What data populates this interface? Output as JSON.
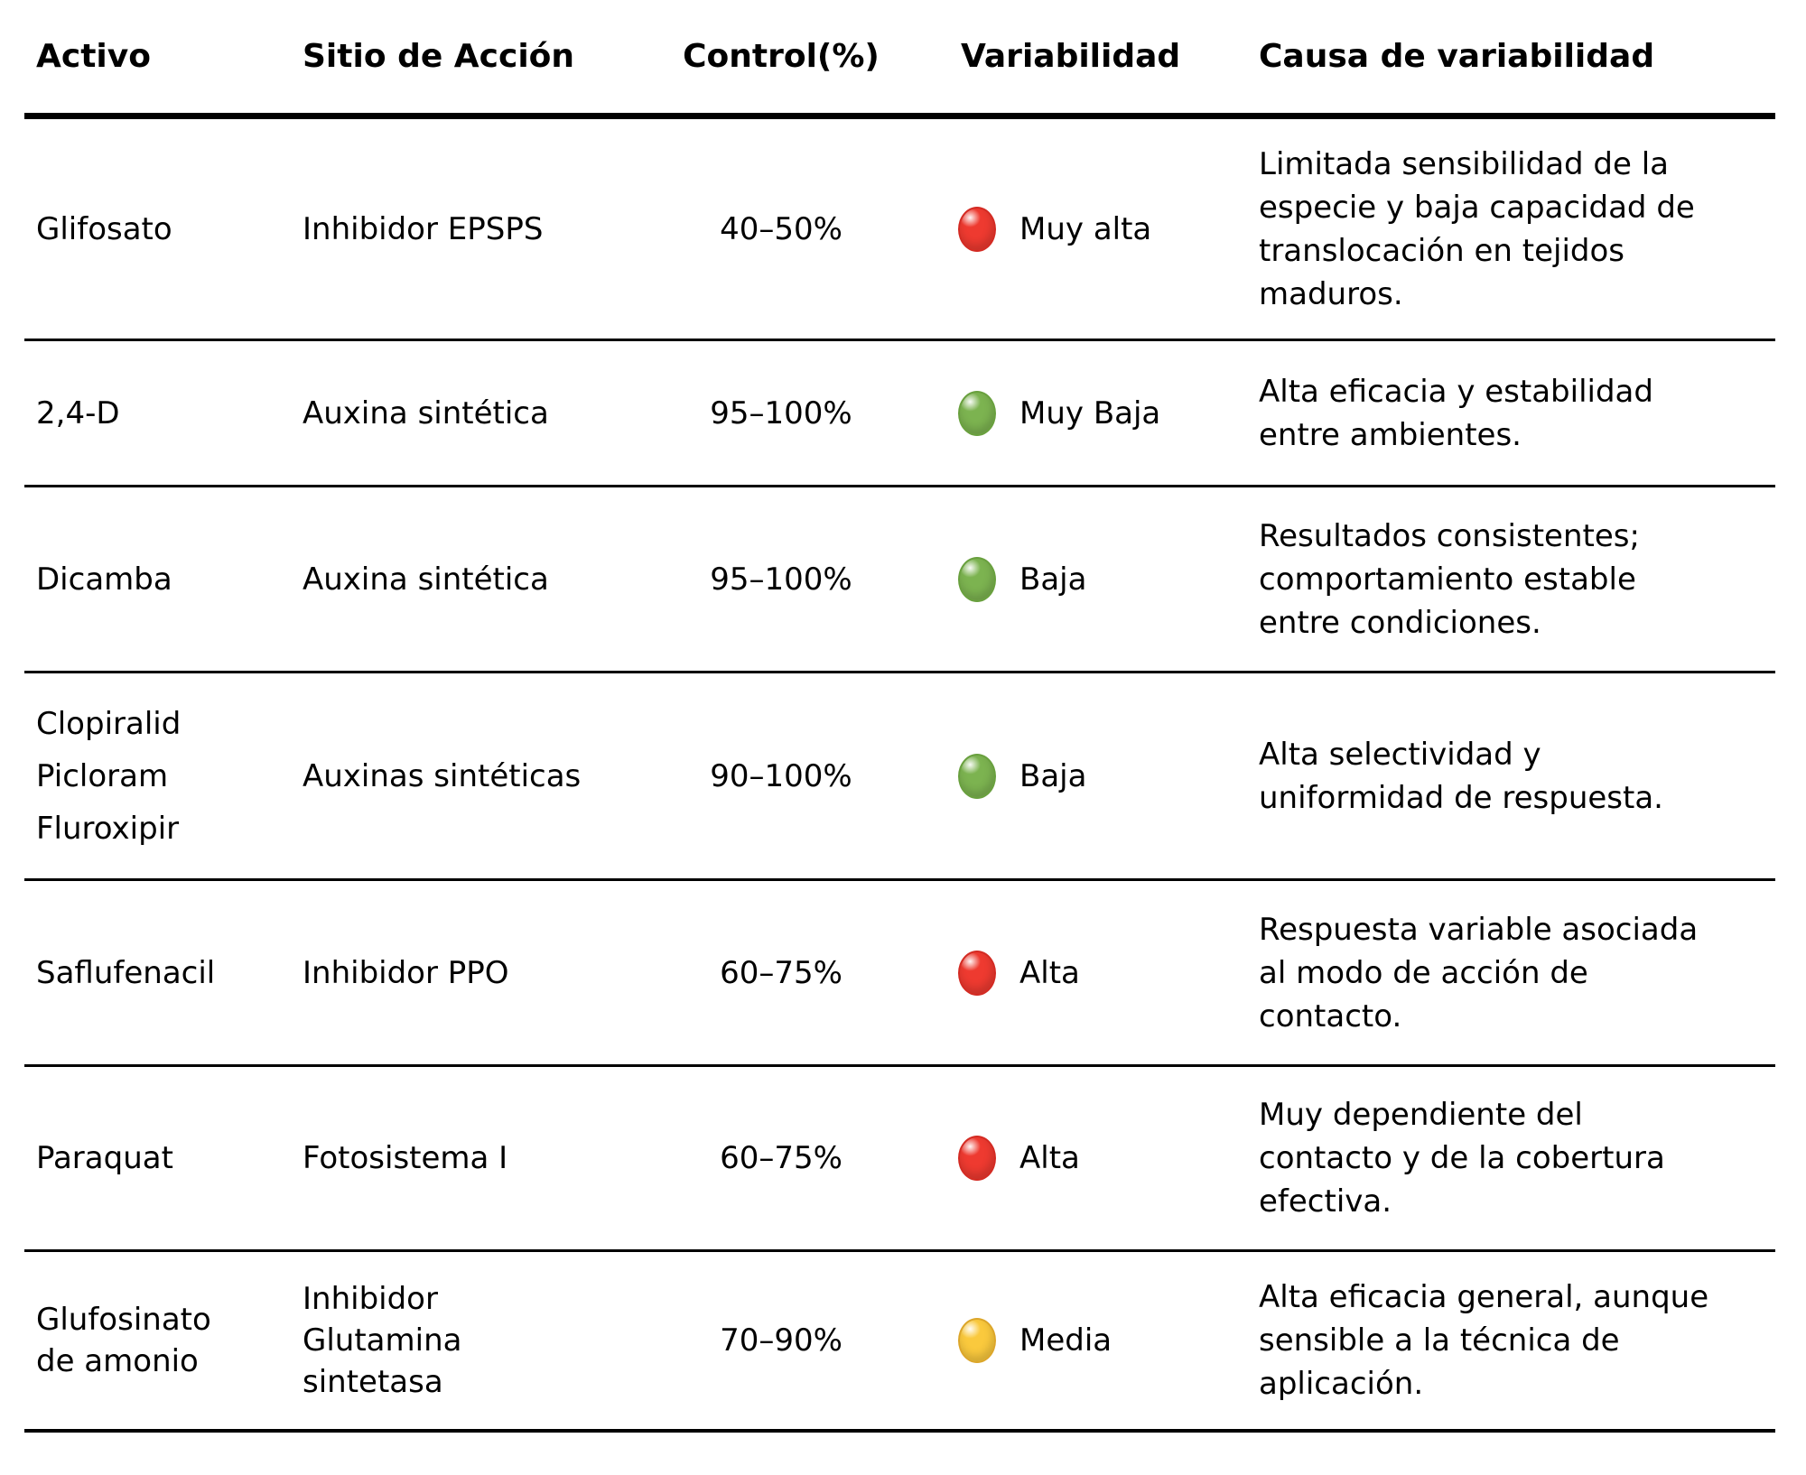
{
  "chart_data": {
    "type": "table",
    "title": "",
    "columns": [
      "Activo",
      "Sitio de Acción",
      "Control(%)",
      "Variabilidad",
      "Causa de variabilidad"
    ],
    "legend_colors": {
      "muy_alta_alta": "#ee3a30",
      "baja_muy_baja": "#7cb350",
      "media": "#fac93d"
    },
    "rows": [
      {
        "activo": "Glifosato",
        "sitio": "Inhibidor EPSPS",
        "control": "40–50%",
        "variabilidad": "Muy alta",
        "dot": {
          "fill": "#ee3a30",
          "edge": "#d32b23",
          "name": "red"
        },
        "causa": "Limitada sensibilidad de la\nespecie y baja capacidad de\ntranslocación en tejidos\nmaduros."
      },
      {
        "activo": "2,4-D",
        "sitio": "Auxina sintética",
        "control": "95–100%",
        "variabilidad": "Muy Baja",
        "dot": {
          "fill": "#7cb350",
          "edge": "#69a03e",
          "name": "green"
        },
        "causa": "Alta eficacia y estabilidad\nentre ambientes."
      },
      {
        "activo": "Dicamba",
        "sitio": "Auxina sintética",
        "control": "95–100%",
        "variabilidad": "Baja",
        "dot": {
          "fill": "#7cb350",
          "edge": "#69a03e",
          "name": "green"
        },
        "causa": "Resultados consistentes;\ncomportamiento estable\nentre condiciones."
      },
      {
        "activo": "Clopiralid\nPicloram\nFluroxipir",
        "sitio": "Auxinas sintéticas",
        "control": "90–100%",
        "variabilidad": "Baja",
        "dot": {
          "fill": "#7cb350",
          "edge": "#69a03e",
          "name": "green"
        },
        "causa": "Alta selectividad y\nuniformidad de respuesta."
      },
      {
        "activo": "Saflufenacil",
        "sitio": "Inhibidor PPO",
        "control": "60–75%",
        "variabilidad": "Alta",
        "dot": {
          "fill": "#ee3a30",
          "edge": "#d32b23",
          "name": "red"
        },
        "causa": "Respuesta variable asociada\nal modo de acción de\ncontacto."
      },
      {
        "activo": "Paraquat",
        "sitio": "Fotosistema I",
        "control": "60–75%",
        "variabilidad": "Alta",
        "dot": {
          "fill": "#ee3a30",
          "edge": "#d32b23",
          "name": "red"
        },
        "causa": "Muy dependiente del\ncontacto y de la cobertura\nefectiva."
      },
      {
        "activo": "Glufosinato\nde amonio",
        "sitio": "Inhibidor\nGlutamina\nsintetasa",
        "control": "70–90%",
        "variabilidad": "Media",
        "dot": {
          "fill": "#fac93d",
          "edge": "#dca62a",
          "name": "yellow"
        },
        "causa": "Alta eficacia general, aunque\nsensible a la técnica de\naplicación."
      }
    ]
  }
}
